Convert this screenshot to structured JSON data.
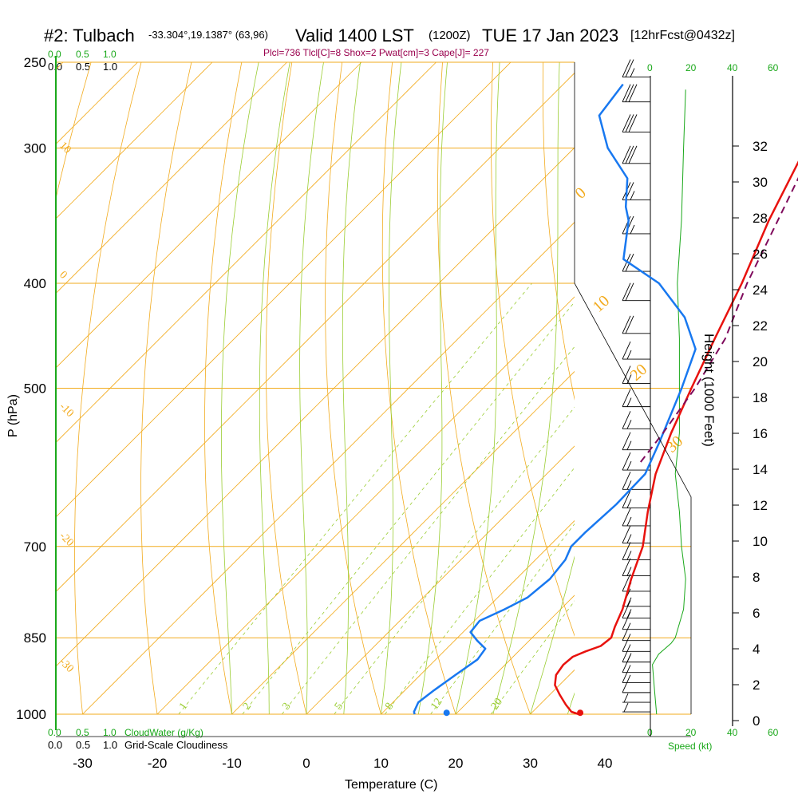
{
  "header": {
    "station": "#2: Tulbach",
    "coords": "-33.304°,19.1387° (63,96)",
    "valid": "Valid 1400 LST",
    "utc": "(1200Z)",
    "date": "TUE 17 Jan 2023",
    "forecast": "[12hrFcst@0432z]"
  },
  "params_line": "Plcl=736 Tlcl[C]=8 Shox=2 Pwat[cm]=3 Cape[J]= 227",
  "scales": {
    "cloudwater_ticks": [
      "0.0",
      "0.5",
      "1.0"
    ],
    "cloudiness_ticks": [
      "0.0",
      "0.5",
      "1.0"
    ],
    "cloudwater_label": "CloudWater (g/Kg)",
    "cloudiness_label": "Grid-Scale Cloudiness",
    "speed_ticks": [
      "0",
      "20",
      "40",
      "60"
    ],
    "speed_label": "Speed (kt)"
  },
  "colors": {
    "isobar": "#f2ab1e",
    "isotherm": "#f2ab1e",
    "dry_adiabat": "#f2ab1e",
    "moist_adiabat": "#9acd32",
    "mixing_ratio": "#9acd32",
    "temperature": "#e8120e",
    "dewpoint": "#1878f0",
    "parcel": "#7f0a5c",
    "wind_speed": "#1aa81a",
    "cloud_axis": "#1aa81a"
  },
  "chart_data": {
    "type": "line",
    "title": "Skew-T log-P sounding",
    "xlabel": "Temperature (C)",
    "ylabel": "P (hPa)",
    "right_label": "Height (1000 Feet)",
    "x_ticks": [
      "-30",
      "-20",
      "-10",
      "0",
      "10",
      "20",
      "30",
      "40"
    ],
    "x_tick_values": [
      -30,
      -20,
      -10,
      0,
      10,
      20,
      30,
      40
    ],
    "pressure_ticks": [
      "250",
      "300",
      "400",
      "500",
      "700",
      "850",
      "1000"
    ],
    "pressure_tick_values": [
      250,
      300,
      400,
      500,
      700,
      850,
      1000
    ],
    "height_ticks": [
      "0",
      "2",
      "4",
      "6",
      "8",
      "10",
      "12",
      "14",
      "16",
      "18",
      "20",
      "22",
      "24",
      "26",
      "28",
      "30",
      "32"
    ],
    "height_tick_values_kft": [
      0,
      2,
      4,
      6,
      8,
      10,
      12,
      14,
      16,
      18,
      20,
      22,
      24,
      26,
      28,
      30,
      32
    ],
    "isotherm_labels": [
      "10",
      "0",
      "-10",
      "-20",
      "-30"
    ],
    "dry_adiabat_labels": [
      "0",
      "10",
      "20",
      "30"
    ],
    "mixing_ratio_labels": [
      "1",
      "2",
      "3",
      "5",
      "8",
      "12",
      "20"
    ],
    "mixing_ratio_values": [
      1,
      2,
      3,
      5,
      8,
      12,
      20
    ],
    "series": [
      {
        "name": "Temperature",
        "points": [
          [
            1000,
            36.5
          ],
          [
            995,
            35.2
          ],
          [
            980,
            33.5
          ],
          [
            960,
            31.4
          ],
          [
            940,
            29.4
          ],
          [
            920,
            28.2
          ],
          [
            900,
            27.8
          ],
          [
            885,
            28.0
          ],
          [
            875,
            29.0
          ],
          [
            865,
            30.3
          ],
          [
            850,
            30.6
          ],
          [
            830,
            29.6
          ],
          [
            800,
            28.3
          ],
          [
            750,
            25.4
          ],
          [
            700,
            22.6
          ],
          [
            650,
            18.6
          ],
          [
            600,
            14.6
          ],
          [
            550,
            11.2
          ],
          [
            500,
            7.9
          ],
          [
            450,
            4.4
          ],
          [
            400,
            0.6
          ],
          [
            350,
            -4.2
          ],
          [
            300,
            -9.0
          ],
          [
            265,
            -12.4
          ]
        ]
      },
      {
        "name": "Dewpoint",
        "points": [
          [
            1000,
            14.5
          ],
          [
            995,
            14.1
          ],
          [
            975,
            13.4
          ],
          [
            950,
            13.9
          ],
          [
            920,
            14.7
          ],
          [
            890,
            15.6
          ],
          [
            870,
            15.2
          ],
          [
            855,
            13.0
          ],
          [
            840,
            11.0
          ],
          [
            820,
            10.7
          ],
          [
            800,
            12.5
          ],
          [
            780,
            14.0
          ],
          [
            750,
            14.5
          ],
          [
            720,
            14.0
          ],
          [
            700,
            13.0
          ],
          [
            680,
            13.0
          ],
          [
            640,
            13.4
          ],
          [
            600,
            13.2
          ],
          [
            560,
            10.8
          ],
          [
            500,
            6.6
          ],
          [
            460,
            3.2
          ],
          [
            430,
            -2.5
          ],
          [
            400,
            -10.5
          ],
          [
            380,
            -18.5
          ],
          [
            350,
            -23.0
          ],
          [
            340,
            -25.2
          ],
          [
            320,
            -28.8
          ],
          [
            300,
            -35.5
          ],
          [
            280,
            -41.0
          ],
          [
            262,
            -42.0
          ]
        ]
      },
      {
        "name": "Parcel",
        "style": "dashed",
        "points": [
          [
            585,
            11.0
          ],
          [
            550,
            10.1
          ],
          [
            500,
            8.4
          ],
          [
            450,
            5.8
          ],
          [
            400,
            1.3
          ],
          [
            350,
            -3.0
          ],
          [
            300,
            -8.0
          ]
        ]
      }
    ],
    "surface_markers": [
      {
        "series": "Temperature",
        "p": 997,
        "t": 36.5
      },
      {
        "series": "Dewpoint",
        "p": 997,
        "t": 18.6
      }
    ],
    "wind_speed_kt": [
      [
        1000,
        3
      ],
      [
        950,
        2
      ],
      [
        900,
        1
      ],
      [
        880,
        4
      ],
      [
        860,
        10
      ],
      [
        850,
        12
      ],
      [
        800,
        16
      ],
      [
        750,
        17
      ],
      [
        700,
        15
      ],
      [
        650,
        14
      ],
      [
        600,
        12
      ],
      [
        550,
        14
      ],
      [
        500,
        14
      ],
      [
        450,
        14
      ],
      [
        400,
        13
      ],
      [
        350,
        15
      ],
      [
        300,
        16
      ],
      [
        265,
        17
      ]
    ],
    "wind_barbs": [
      {
        "p": 995,
        "spd": 5
      },
      {
        "p": 975,
        "spd": 5
      },
      {
        "p": 955,
        "spd": 10
      },
      {
        "p": 935,
        "spd": 10
      },
      {
        "p": 915,
        "spd": 10
      },
      {
        "p": 895,
        "spd": 15
      },
      {
        "p": 875,
        "spd": 10
      },
      {
        "p": 855,
        "spd": 10
      },
      {
        "p": 835,
        "spd": 10
      },
      {
        "p": 815,
        "spd": 15
      },
      {
        "p": 795,
        "spd": 15
      },
      {
        "p": 770,
        "spd": 15
      },
      {
        "p": 745,
        "spd": 15
      },
      {
        "p": 720,
        "spd": 15
      },
      {
        "p": 695,
        "spd": 15
      },
      {
        "p": 670,
        "spd": 15
      },
      {
        "p": 645,
        "spd": 15
      },
      {
        "p": 620,
        "spd": 15
      },
      {
        "p": 595,
        "spd": 15
      },
      {
        "p": 570,
        "spd": 15
      },
      {
        "p": 545,
        "spd": 15
      },
      {
        "p": 520,
        "spd": 15
      },
      {
        "p": 495,
        "spd": 15
      },
      {
        "p": 470,
        "spd": 15
      },
      {
        "p": 445,
        "spd": 20
      },
      {
        "p": 415,
        "spd": 20
      },
      {
        "p": 390,
        "spd": 20
      },
      {
        "p": 360,
        "spd": 25
      },
      {
        "p": 335,
        "spd": 25
      },
      {
        "p": 310,
        "spd": 30
      },
      {
        "p": 290,
        "spd": 30
      },
      {
        "p": 272,
        "spd": 30
      },
      {
        "p": 258,
        "spd": 25
      }
    ],
    "xlim": [
      -35,
      35
    ],
    "ylim_hpa": [
      250,
      1000
    ],
    "grid": true,
    "scale": "log-p",
    "skew": "45-degree"
  }
}
